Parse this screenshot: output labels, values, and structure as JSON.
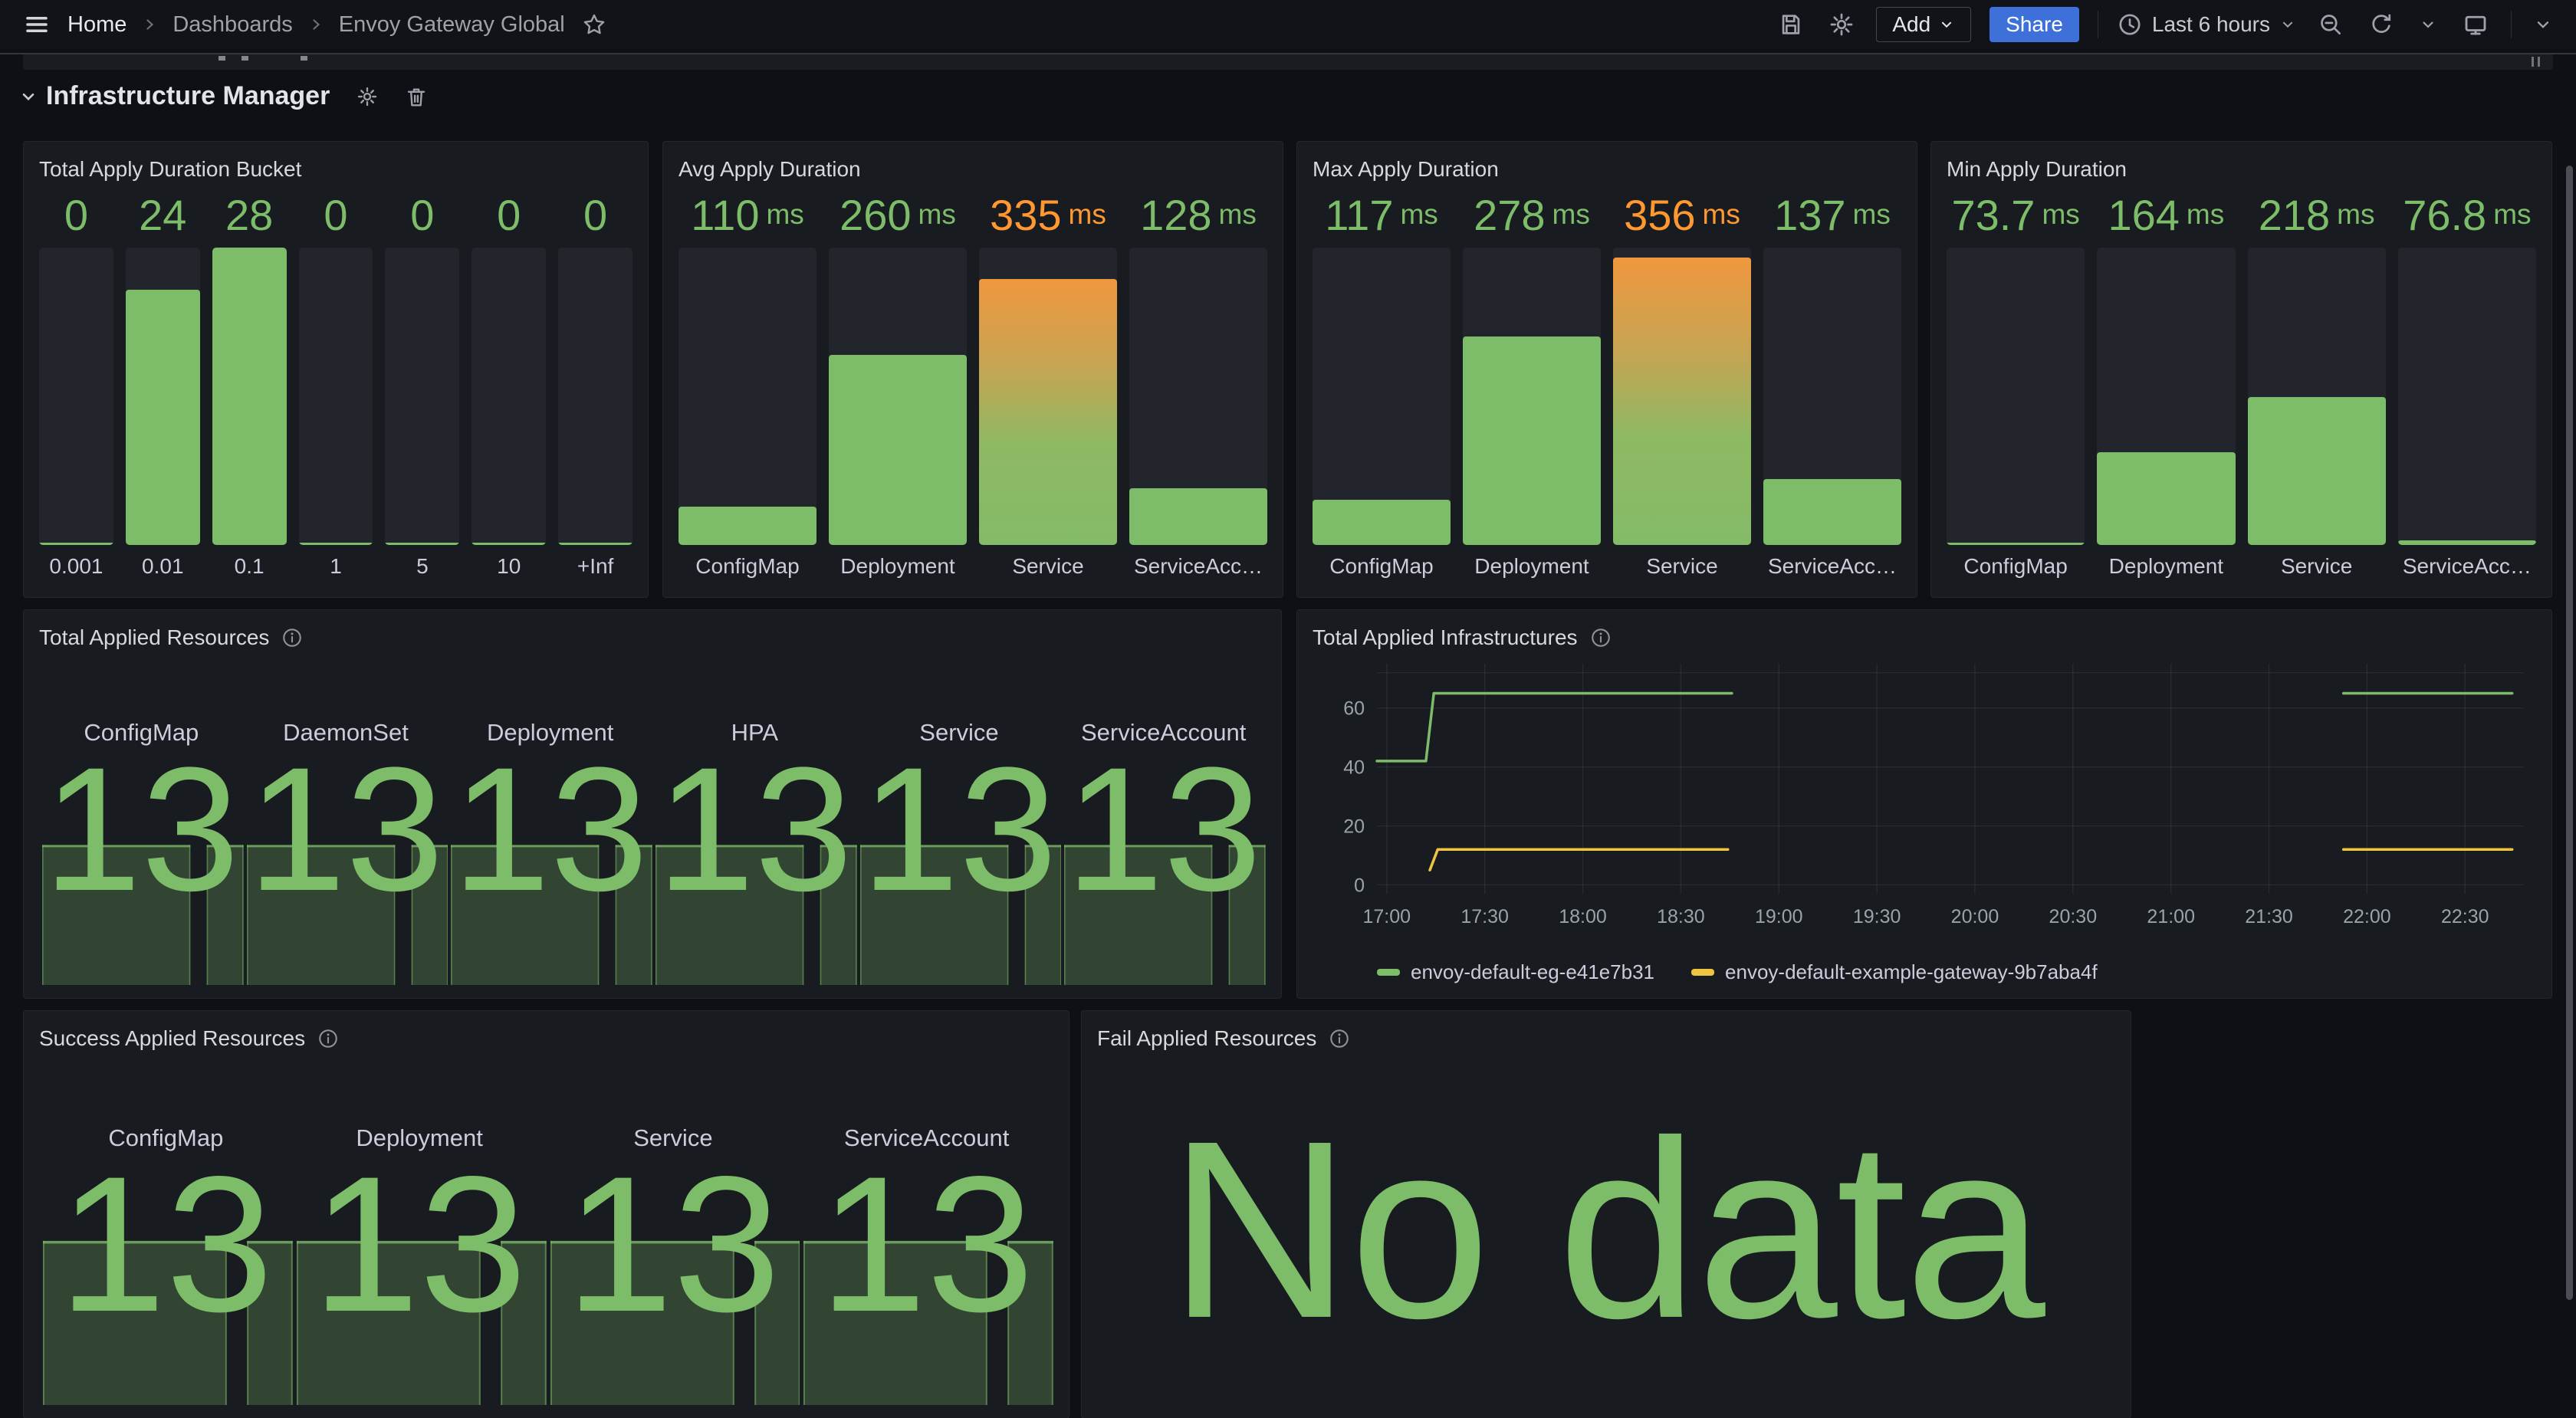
{
  "colors": {
    "green": "#7DBC69",
    "orange": "#FF9830",
    "yellow": "#EFC53F",
    "blue": "#3D71D9"
  },
  "topbar": {
    "breadcrumb": [
      "Home",
      "Dashboards",
      "Envoy Gateway Global"
    ],
    "add_label": "Add",
    "share_label": "Share",
    "time_range": "Last 6 hours"
  },
  "section": {
    "title": "Infrastructure Manager"
  },
  "chart_data": [
    {
      "type": "bar",
      "title": "Total Apply Duration Bucket",
      "categories": [
        "0.001",
        "0.01",
        "0.1",
        "1",
        "5",
        "10",
        "+Inf"
      ],
      "values": [
        0,
        24,
        28,
        0,
        0,
        0,
        0
      ],
      "display": [
        "0",
        "24",
        "28",
        "0",
        "0",
        "0",
        "0"
      ],
      "unit": "",
      "ylim": [
        0,
        28
      ],
      "levels": [
        "green",
        "green",
        "green",
        "green",
        "green",
        "green",
        "green"
      ]
    },
    {
      "type": "bar",
      "title": "Avg Apply Duration",
      "categories": [
        "ConfigMap",
        "Deployment",
        "Service",
        "ServiceAcc…"
      ],
      "values": [
        110,
        260,
        335,
        128
      ],
      "display": [
        "110",
        "260",
        "335",
        "128"
      ],
      "unit": "ms",
      "ylim": [
        72,
        366
      ],
      "levels": [
        "green",
        "green",
        "orange",
        "green"
      ]
    },
    {
      "type": "bar",
      "title": "Max Apply Duration",
      "categories": [
        "ConfigMap",
        "Deployment",
        "Service",
        "ServiceAcc…"
      ],
      "values": [
        117,
        278,
        356,
        137
      ],
      "display": [
        "117",
        "278",
        "356",
        "137"
      ],
      "unit": "ms",
      "ylim": [
        72,
        366
      ],
      "levels": [
        "green",
        "green",
        "orange",
        "green"
      ]
    },
    {
      "type": "bar",
      "title": "Min Apply Duration",
      "categories": [
        "ConfigMap",
        "Deployment",
        "Service",
        "ServiceAcc…"
      ],
      "values": [
        73.7,
        164,
        218,
        76.8
      ],
      "display": [
        "73.7",
        "164",
        "218",
        "76.8"
      ],
      "unit": "ms",
      "ylim": [
        72,
        366
      ],
      "levels": [
        "green",
        "green",
        "green",
        "green"
      ]
    },
    {
      "type": "stat",
      "title": "Total Applied Resources",
      "categories": [
        "ConfigMap",
        "DaemonSet",
        "Deployment",
        "HPA",
        "Service",
        "ServiceAccount"
      ],
      "values": [
        13,
        13,
        13,
        13,
        13,
        13
      ],
      "sparkline": {
        "pulses": [
          [
            0.015,
            0.74
          ],
          [
            0.82,
            1.0
          ]
        ]
      }
    },
    {
      "type": "line",
      "title": "Total Applied Infrastructures",
      "x_ticks": [
        "17:00",
        "17:30",
        "18:00",
        "18:30",
        "19:00",
        "19:30",
        "20:00",
        "20:30",
        "21:00",
        "21:30",
        "22:00",
        "22:30"
      ],
      "x_tick_hours": [
        17,
        17.5,
        18,
        18.5,
        19,
        19.5,
        20,
        20.5,
        21,
        21.5,
        22,
        22.5
      ],
      "y_ticks": [
        0,
        20,
        40,
        60
      ],
      "grid_y": [
        0,
        20,
        40,
        60,
        72
      ],
      "xlim": [
        16.95,
        22.8
      ],
      "ylim": [
        -3,
        75
      ],
      "grid": true,
      "legend_position": "bottom",
      "series": [
        {
          "name": "envoy-default-eg-e41e7b31",
          "color": "#7DBC69",
          "segments": [
            [
              [
                16.95,
                42
              ],
              [
                17.2,
                42
              ],
              [
                17.24,
                65
              ],
              [
                18.76,
                65
              ]
            ],
            [
              [
                21.88,
                65
              ],
              [
                22.74,
                65
              ]
            ]
          ]
        },
        {
          "name": "envoy-default-example-gateway-9b7aba4f",
          "color": "#EFC53F",
          "segments": [
            [
              [
                17.22,
                5
              ],
              [
                17.26,
                12
              ],
              [
                18.74,
                12
              ]
            ],
            [
              [
                21.88,
                12
              ],
              [
                22.74,
                12
              ]
            ]
          ]
        }
      ]
    },
    {
      "type": "stat",
      "title": "Success Applied Resources",
      "categories": [
        "ConfigMap",
        "Deployment",
        "Service",
        "ServiceAccount"
      ],
      "values": [
        13,
        13,
        13,
        13
      ],
      "sparkline": {
        "pulses": [
          [
            0.015,
            0.74
          ],
          [
            0.82,
            1.0
          ]
        ]
      }
    },
    {
      "type": "stat",
      "title": "Fail Applied Resources",
      "no_data_text": "No data"
    }
  ]
}
